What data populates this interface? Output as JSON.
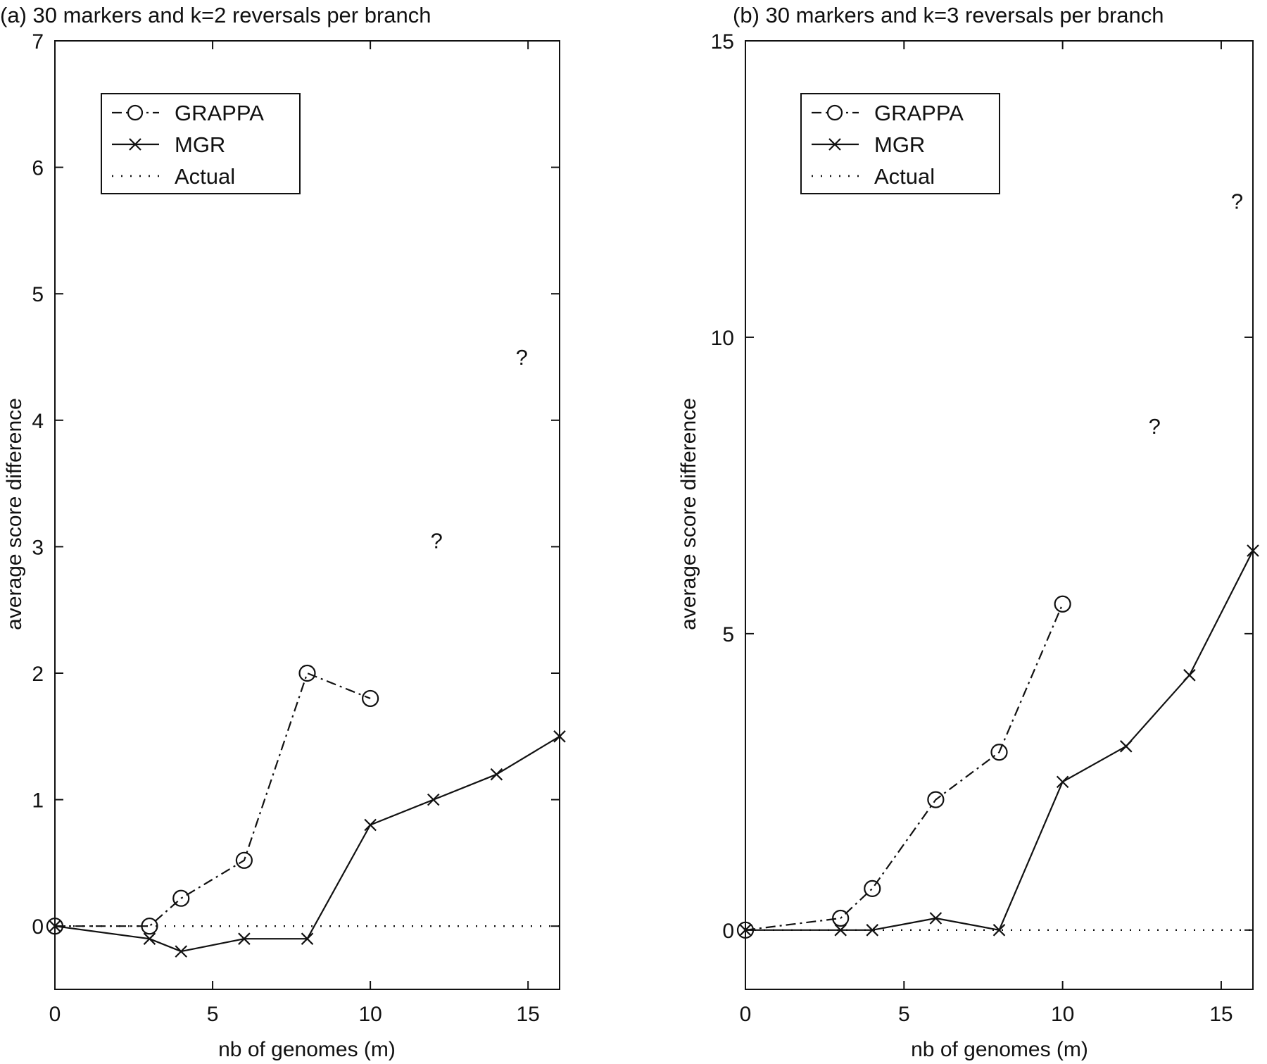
{
  "chart_data": [
    {
      "type": "line",
      "title": "(a)  30 markers and k=2 reversals per branch",
      "xlabel": "nb of genomes (m)",
      "ylabel": "average score difference",
      "xlim": [
        0,
        16
      ],
      "ylim": [
        -0.5,
        7
      ],
      "xticks": [
        "0",
        "5",
        "10",
        "15"
      ],
      "yticks": [
        "0",
        "1",
        "2",
        "3",
        "4",
        "5",
        "6",
        "7"
      ],
      "legend": {
        "position": "top-left",
        "entries": [
          "GRAPPA",
          "MGR",
          "Actual"
        ]
      },
      "series": [
        {
          "name": "GRAPPA",
          "style": "dash-dot-circle",
          "x": [
            0,
            3,
            4,
            6,
            8,
            10
          ],
          "y": [
            0,
            0,
            0.22,
            0.52,
            2.0,
            1.8
          ]
        },
        {
          "name": "MGR",
          "style": "solid-x",
          "x": [
            0,
            3,
            4,
            6,
            8,
            10,
            12,
            14,
            16
          ],
          "y": [
            0,
            -0.1,
            -0.2,
            -0.1,
            -0.1,
            0.8,
            1.0,
            1.2,
            1.5
          ]
        },
        {
          "name": "Actual",
          "style": "dotted",
          "x": [
            0,
            16
          ],
          "y": [
            0,
            0
          ]
        }
      ],
      "annotations": [
        {
          "text": "?",
          "x": 12.1,
          "y": 3.05
        },
        {
          "text": "?",
          "x": 14.8,
          "y": 4.5
        }
      ]
    },
    {
      "type": "line",
      "title": "(b)  30 markers and k=3 reversals per branch",
      "xlabel": "nb of genomes (m)",
      "ylabel": "average score difference",
      "xlim": [
        0,
        16
      ],
      "ylim": [
        -1,
        15
      ],
      "xticks": [
        "0",
        "5",
        "10",
        "15"
      ],
      "yticks": [
        "0",
        "5",
        "10",
        "15"
      ],
      "legend": {
        "position": "top-left",
        "entries": [
          "GRAPPA",
          "MGR",
          "Actual"
        ]
      },
      "series": [
        {
          "name": "GRAPPA",
          "style": "dash-dot-circle",
          "x": [
            0,
            3,
            4,
            6,
            8,
            10
          ],
          "y": [
            0,
            0.2,
            0.7,
            2.2,
            3.0,
            5.5
          ]
        },
        {
          "name": "MGR",
          "style": "solid-x",
          "x": [
            0,
            3,
            4,
            6,
            8,
            10,
            12,
            14,
            16
          ],
          "y": [
            0,
            0,
            0,
            0.2,
            0,
            2.5,
            3.1,
            4.3,
            6.4
          ]
        },
        {
          "name": "Actual",
          "style": "dotted",
          "x": [
            0,
            16
          ],
          "y": [
            0,
            0
          ]
        }
      ],
      "annotations": [
        {
          "text": "?",
          "x": 12.9,
          "y": 8.5
        },
        {
          "text": "?",
          "x": 15.5,
          "y": 12.3
        }
      ]
    }
  ]
}
